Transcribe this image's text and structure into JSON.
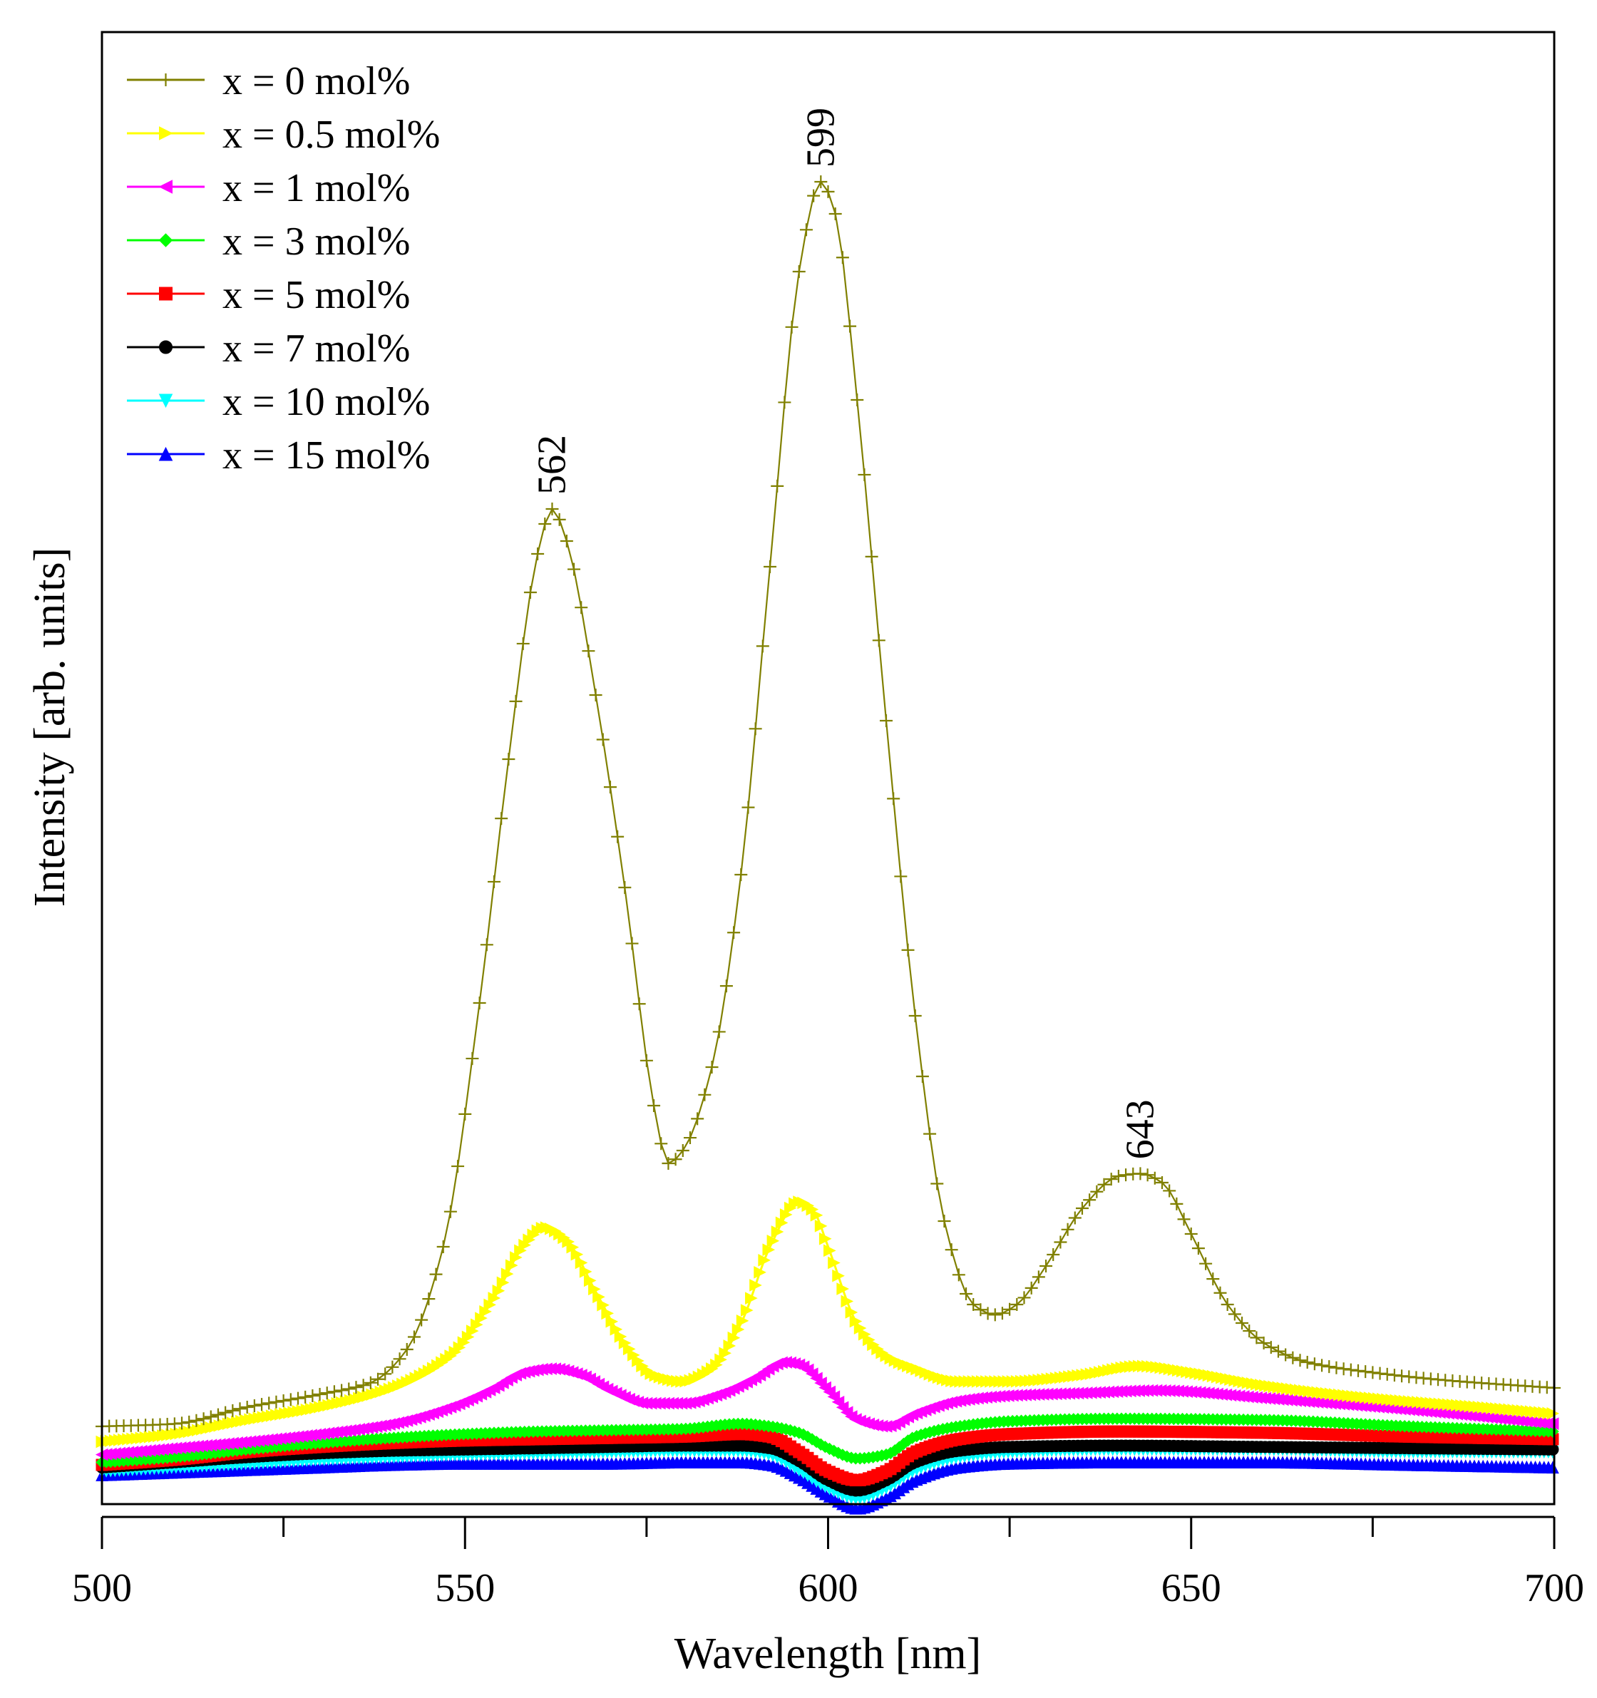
{
  "chart_data": {
    "type": "line",
    "title": "",
    "xlabel": "Wavelength [nm]",
    "ylabel": "Intensity [arb. units]",
    "xlim": [
      500,
      700
    ],
    "ylim": [
      0,
      1
    ],
    "x_ticks": [
      500,
      550,
      600,
      650,
      700
    ],
    "x_minor_ticks": [
      525,
      575,
      625,
      675
    ],
    "legend_position": "top-left",
    "grid": false,
    "annotations": [
      {
        "label": "562",
        "x": 562,
        "y": 0.745
      },
      {
        "label": "599",
        "x": 599,
        "y": 1.0
      },
      {
        "label": "643",
        "x": 643,
        "y": 0.227
      }
    ],
    "series": [
      {
        "name": "x = 0 mol%",
        "color": "#808000",
        "marker": "plus",
        "x": [
          500,
          510,
          520,
          530,
          537,
          542,
          547,
          552,
          556,
          560,
          562,
          564,
          568,
          572,
          576,
          578,
          580,
          584,
          588,
          592,
          596,
          599,
          601,
          604,
          608,
          612,
          616,
          620,
          623,
          626,
          630,
          635,
          640,
          643,
          646,
          650,
          655,
          660,
          666,
          675,
          685,
          700
        ],
        "values": [
          0.03,
          0.032,
          0.045,
          0.055,
          0.064,
          0.09,
          0.17,
          0.36,
          0.55,
          0.71,
          0.745,
          0.72,
          0.6,
          0.45,
          0.28,
          0.235,
          0.245,
          0.31,
          0.46,
          0.7,
          0.93,
          1.0,
          0.975,
          0.83,
          0.58,
          0.35,
          0.19,
          0.125,
          0.117,
          0.125,
          0.155,
          0.2,
          0.225,
          0.227,
          0.22,
          0.18,
          0.125,
          0.095,
          0.08,
          0.072,
          0.066,
          0.06
        ]
      },
      {
        "name": "x = 0.5 mol%",
        "color": "#FFFF00",
        "marker": "triangle-right",
        "x": [
          500,
          510,
          520,
          530,
          540,
          548,
          554,
          558,
          561,
          564,
          568,
          572,
          576,
          580,
          584,
          588,
          592,
          596,
          598,
          600,
          604,
          608,
          612,
          618,
          625,
          635,
          643,
          650,
          660,
          675,
          690,
          700
        ],
        "values": [
          0.018,
          0.024,
          0.035,
          0.045,
          0.06,
          0.085,
          0.13,
          0.17,
          0.185,
          0.175,
          0.135,
          0.095,
          0.07,
          0.065,
          0.075,
          0.11,
          0.17,
          0.205,
          0.198,
          0.17,
          0.11,
          0.085,
          0.075,
          0.065,
          0.065,
          0.07,
          0.077,
          0.072,
          0.062,
          0.052,
          0.045,
          0.04
        ]
      },
      {
        "name": "x = 1 mol%",
        "color": "#FF00FF",
        "marker": "triangle-left",
        "x": [
          500,
          510,
          520,
          530,
          540,
          548,
          554,
          558,
          562,
          566,
          570,
          575,
          580,
          585,
          590,
          594,
          596,
          600,
          604,
          608,
          612,
          618,
          625,
          635,
          645,
          660,
          680,
          700
        ],
        "values": [
          0.008,
          0.013,
          0.018,
          0.024,
          0.032,
          0.045,
          0.06,
          0.072,
          0.075,
          0.07,
          0.058,
          0.048,
          0.048,
          0.055,
          0.068,
          0.08,
          0.078,
          0.058,
          0.035,
          0.03,
          0.04,
          0.05,
          0.054,
          0.056,
          0.058,
          0.052,
          0.043,
          0.032
        ]
      },
      {
        "name": "x = 3 mol%",
        "color": "#00FF00",
        "marker": "diamond",
        "x": [
          500,
          510,
          520,
          530,
          540,
          550,
          560,
          570,
          580,
          588,
          592,
          596,
          600,
          604,
          608,
          612,
          618,
          625,
          640,
          660,
          680,
          700
        ],
        "values": [
          0.002,
          0.006,
          0.012,
          0.017,
          0.021,
          0.024,
          0.026,
          0.027,
          0.028,
          0.032,
          0.03,
          0.025,
          0.013,
          0.005,
          0.008,
          0.022,
          0.03,
          0.034,
          0.036,
          0.035,
          0.03,
          0.026
        ]
      },
      {
        "name": "x = 5 mol%",
        "color": "#FF0000",
        "marker": "square",
        "x": [
          500,
          510,
          520,
          530,
          540,
          550,
          560,
          570,
          580,
          588,
          592,
          596,
          600,
          604,
          608,
          612,
          618,
          625,
          640,
          660,
          680,
          700
        ],
        "values": [
          0.0,
          0.004,
          0.01,
          0.014,
          0.017,
          0.019,
          0.02,
          0.021,
          0.022,
          0.024,
          0.022,
          0.01,
          -0.005,
          -0.012,
          -0.005,
          0.01,
          0.02,
          0.024,
          0.026,
          0.025,
          0.022,
          0.02
        ]
      },
      {
        "name": "x = 7 mol%",
        "color": "#000000",
        "marker": "circle",
        "x": [
          500,
          510,
          520,
          530,
          540,
          550,
          560,
          570,
          580,
          588,
          592,
          596,
          600,
          604,
          608,
          612,
          618,
          625,
          640,
          660,
          680,
          700
        ],
        "values": [
          -0.002,
          0.002,
          0.006,
          0.009,
          0.011,
          0.012,
          0.013,
          0.014,
          0.015,
          0.015,
          0.013,
          0.003,
          -0.012,
          -0.02,
          -0.012,
          0.002,
          0.011,
          0.014,
          0.015,
          0.014,
          0.013,
          0.012
        ]
      },
      {
        "name": "x = 10 mol%",
        "color": "#00FFFF",
        "marker": "triangle-down",
        "x": [
          500,
          510,
          520,
          530,
          540,
          550,
          560,
          570,
          580,
          588,
          592,
          596,
          600,
          604,
          608,
          612,
          618,
          625,
          640,
          660,
          680,
          700
        ],
        "values": [
          -0.005,
          -0.002,
          0.001,
          0.004,
          0.006,
          0.008,
          0.009,
          0.01,
          0.011,
          0.011,
          0.008,
          -0.004,
          -0.018,
          -0.026,
          -0.018,
          -0.004,
          0.006,
          0.01,
          0.012,
          0.012,
          0.01,
          0.01
        ]
      },
      {
        "name": "x = 15 mol%",
        "color": "#0000FF",
        "marker": "triangle-up",
        "x": [
          500,
          510,
          520,
          530,
          540,
          550,
          560,
          570,
          580,
          588,
          592,
          596,
          600,
          604,
          608,
          612,
          618,
          625,
          640,
          660,
          680,
          700
        ],
        "values": [
          -0.008,
          -0.006,
          -0.004,
          -0.002,
          0.0,
          0.001,
          0.001,
          0.001,
          0.002,
          0.002,
          0.0,
          -0.01,
          -0.024,
          -0.034,
          -0.026,
          -0.012,
          -0.002,
          0.001,
          0.002,
          0.002,
          0.0,
          -0.002
        ]
      }
    ]
  }
}
